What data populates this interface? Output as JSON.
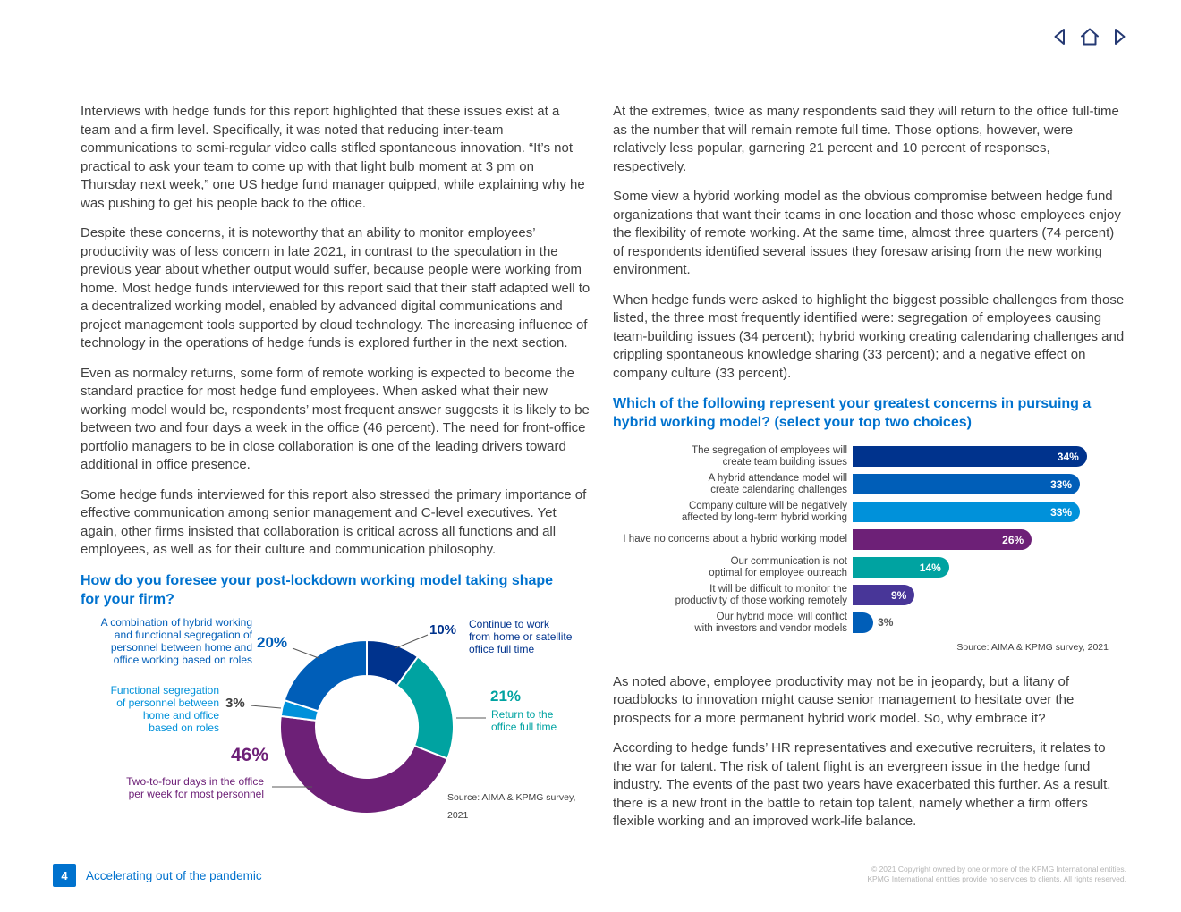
{
  "nav": {
    "back_icon": "left-triangle-arrow",
    "home_icon": "home",
    "forward_icon": "right-triangle-arrow"
  },
  "left_column": {
    "paragraphs": [
      "Interviews with hedge funds for this report highlighted that these issues exist at a team and a firm level. Specifically, it was noted that reducing inter-team communications to semi-regular video calls stifled spontaneous innovation. “It’s not practical to ask your team to come up with that light bulb moment at 3 pm on Thursday next week,” one US hedge fund manager quipped, while explaining why he was pushing to get his people back to the office.",
      "Despite these concerns, it is noteworthy that an ability to monitor employees’ productivity was of less concern in late 2021, in contrast to the speculation in the previous year about whether output would suffer, because people were working from home. Most hedge funds interviewed for this report said that their staff adapted well to a decentralized working model, enabled by advanced digital communications and project management tools supported by cloud technology. The increasing influence of technology in the operations of hedge funds is explored further in the next section.",
      "Even as normalcy returns, some form of remote working is expected to become the standard practice for most hedge fund employees. When asked what their new working model would be, respondents’ most frequent answer suggests it is likely to be between two and four days a week in the office (46 percent). The need for front-office portfolio managers to be in close collaboration is one of the leading drivers toward additional in office presence.",
      "Some hedge funds interviewed for this report also stressed the primary importance of effective communication among senior management and C-level executives. Yet again, other firms insisted that collaboration is critical across all functions and all employees, as well as for their culture and communication philosophy."
    ],
    "heading": "How do you foresee your post-lockdown working model taking shape\nfor your firm?"
  },
  "right_column": {
    "paragraphs_top": [
      "At the extremes, twice as many respondents said they will return to the office full-time as the number that will remain remote full time. Those options, however, were relatively less popular, garnering 21 percent and 10 percent of responses, respectively.",
      "Some view a hybrid working model as the obvious compromise between hedge fund organizations that want their teams in one location and those whose employees enjoy the flexibility of remote working. At the same time, almost three quarters (74 percent) of respondents identified several issues they foresaw arising from the new working environment.",
      "When hedge funds were asked to highlight the biggest possible challenges from those listed, the three most frequently identified were: segregation of employees causing team-building issues (34 percent); hybrid working creating calendaring challenges and crippling spontaneous knowledge sharing (33 percent); and a negative effect on company culture (33 percent)."
    ],
    "heading": "Which of the following represent your greatest concerns in pursuing a\nhybrid working model? (select your top two choices)",
    "paragraphs_bottom": [
      "As noted above, employee productivity may not be in jeopardy, but a litany of roadblocks to innovation might cause senior management to hesitate over the prospects for a more permanent hybrid work model. So, why embrace it?",
      "According to hedge funds’ HR representatives and executive recruiters, it relates to the war for talent. The risk of talent flight is an evergreen issue in the hedge fund industry. The events of the past two years have exacerbated this further. As a result, there is a new front in the battle to retain top talent, namely whether a firm offers flexible working and an improved work-life balance."
    ]
  },
  "chart_data": [
    {
      "type": "pie",
      "subtype": "donut",
      "title": "How do you foresee your post-lockdown working model taking shape for your firm?",
      "source": "Source: AIMA & KPMG survey, 2021",
      "segments": [
        {
          "label": "Continue to work\nfrom home or satellite\noffice full time",
          "value": 10,
          "display": "10%",
          "color": "#00338D"
        },
        {
          "label": "Return to the\noffice full time",
          "value": 21,
          "display": "21%",
          "color": "#00A3A1"
        },
        {
          "label": "Two-to-four days in the office\nper week for most personnel",
          "value": 46,
          "display": "46%",
          "color": "#6D2077"
        },
        {
          "label": "Functional segregation\nof personnel between\nhome and office\nbased on roles",
          "value": 3,
          "display": "3%",
          "color": "#0091DA"
        },
        {
          "label": "A combination of hybrid working\nand functional segregation of\npersonnel between home and\noffice working based on roles",
          "value": 20,
          "display": "20%",
          "color": "#005EB8"
        }
      ]
    },
    {
      "type": "bar",
      "orientation": "horizontal",
      "title": "Which of the following represent your greatest concerns in pursuing a hybrid working model? (select your top two choices)",
      "source": "Source: AIMA & KPMG survey, 2021",
      "categories": [
        "The segregation of employees will\ncreate team building issues",
        "A hybrid attendance model will\ncreate calendaring challenges",
        "Company culture will be negatively\naffected by long-term hybrid working",
        "I have no concerns about a hybrid working model",
        "Our communication is not\noptimal for employee outreach",
        "It will be difficult to monitor the\nproductivity of those working remotely",
        "Our hybrid model will conflict\nwith investors and vendor models"
      ],
      "values": [
        34,
        33,
        33,
        26,
        14,
        9,
        3
      ],
      "displays": [
        "34%",
        "33%",
        "33%",
        "26%",
        "14%",
        "9%",
        "3%"
      ],
      "colors": [
        "#00338D",
        "#005EB8",
        "#0091DA",
        "#6D2077",
        "#00A3A1",
        "#483698",
        "#005EB8"
      ],
      "xlim": [
        0,
        36
      ],
      "legend": "none",
      "grid": false
    }
  ],
  "footer": {
    "page_number": "4",
    "report_title": "Accelerating out of the pandemic",
    "copyright_line1": "© 2021 Copyright owned by one or more of the KPMG International entities.",
    "copyright_line2": "KPMG International entities provide no services to clients. All rights reserved."
  },
  "colors": {
    "heading_blue": "#0072CE",
    "body_text": "#404040",
    "nav_icons": "#253973",
    "footer_accent": "#0072CE",
    "copyright_text": "#B5B5B5"
  }
}
